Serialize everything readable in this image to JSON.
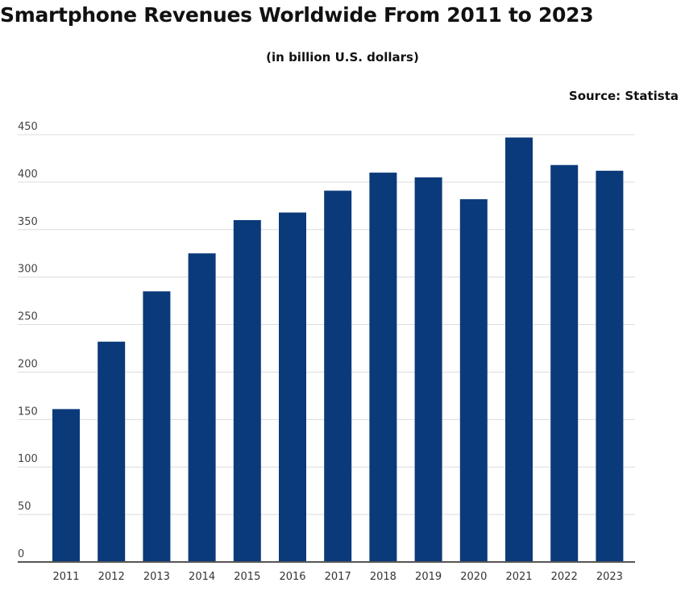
{
  "chart_data": {
    "type": "bar",
    "title": "Smartphone Revenues Worldwide From 2011 to 2023",
    "subtitle": "(in billion U.S. dollars)",
    "source": "Source: Statista",
    "categories": [
      "2011",
      "2012",
      "2013",
      "2014",
      "2015",
      "2016",
      "2017",
      "2018",
      "2019",
      "2020",
      "2021",
      "2022",
      "2023"
    ],
    "values": [
      161,
      232,
      285,
      325,
      360,
      368,
      391,
      410,
      405,
      382,
      447,
      418,
      412
    ],
    "ylim": [
      0,
      450
    ],
    "yticks": [
      0,
      50,
      100,
      150,
      200,
      250,
      300,
      350,
      400,
      450
    ],
    "grid": true,
    "bar_color": "#0a3a7a",
    "xlabel": "",
    "ylabel": ""
  }
}
